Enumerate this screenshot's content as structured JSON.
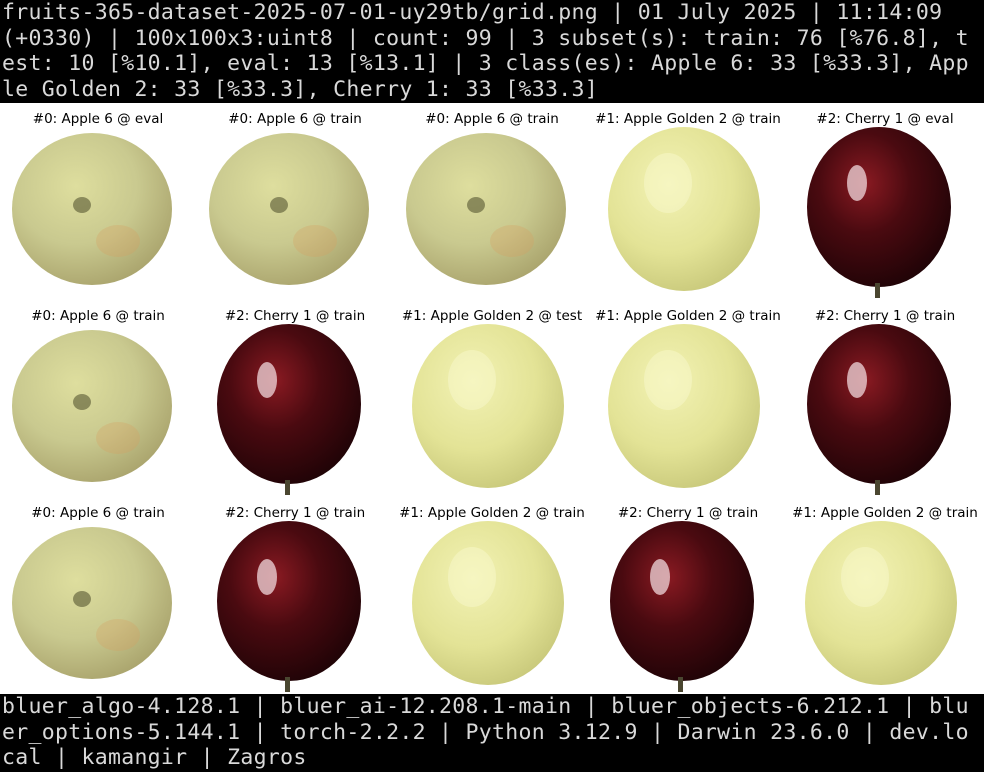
{
  "header": {
    "text": "fruits-365-dataset-2025-07-01-uy29tb/grid.png | 01 July 2025 | 11:14:09 (+0330) | 100x100x3:uint8 | count: 99 | 3 subset(s): train: 76 [%76.8], test: 10 [%10.1], eval: 13 [%13.1] | 3 class(es): Apple 6: 33 [%33.3], Apple Golden 2: 33 [%33.3], Cherry 1: 33 [%33.3]"
  },
  "grid": {
    "cells": [
      {
        "caption": "#0: Apple 6 @ eval",
        "fruit": "apple-6"
      },
      {
        "caption": "#0: Apple 6 @ train",
        "fruit": "apple-6"
      },
      {
        "caption": "#0: Apple 6 @ train",
        "fruit": "apple-6"
      },
      {
        "caption": "#1: Apple Golden 2 @ train",
        "fruit": "apple-golden"
      },
      {
        "caption": "#2: Cherry 1 @ eval",
        "fruit": "cherry"
      },
      {
        "caption": "#0: Apple 6 @ train",
        "fruit": "apple-6"
      },
      {
        "caption": "#2: Cherry 1 @ train",
        "fruit": "cherry"
      },
      {
        "caption": "#1: Apple Golden 2 @ test",
        "fruit": "apple-golden"
      },
      {
        "caption": "#1: Apple Golden 2 @ train",
        "fruit": "apple-golden"
      },
      {
        "caption": "#2: Cherry 1 @ train",
        "fruit": "cherry"
      },
      {
        "caption": "#0: Apple 6 @ train",
        "fruit": "apple-6"
      },
      {
        "caption": "#2: Cherry 1 @ train",
        "fruit": "cherry"
      },
      {
        "caption": "#1: Apple Golden 2 @ train",
        "fruit": "apple-golden"
      },
      {
        "caption": "#2: Cherry 1 @ train",
        "fruit": "cherry"
      },
      {
        "caption": "#1: Apple Golden 2 @ train",
        "fruit": "apple-golden"
      }
    ]
  },
  "footer": {
    "text": "bluer_algo-4.128.1 | bluer_ai-12.208.1-main | bluer_objects-6.212.1 | bluer_options-5.144.1 | torch-2.2.2 | Python 3.12.9 | Darwin 23.6.0 | dev.local | kamangir | Zagros"
  },
  "colors": {
    "banner_bg": "#000000",
    "banner_text": "#d9d9d9",
    "apple_6": "#c9c98f",
    "apple_golden": "#e3e396",
    "cherry": "#4a0a10"
  }
}
